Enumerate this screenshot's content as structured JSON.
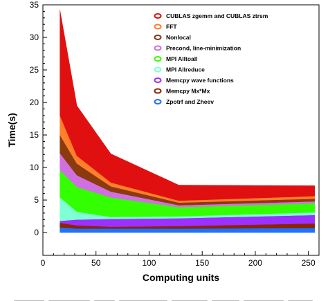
{
  "chart_data": {
    "type": "area",
    "stacked": true,
    "title": "",
    "xlabel": "Computing units",
    "ylabel": "Time(s)",
    "xlim": [
      0,
      260
    ],
    "ylim": [
      -3.5,
      35
    ],
    "xticks": [
      0,
      50,
      100,
      150,
      200,
      250
    ],
    "yticks": [
      0,
      5,
      10,
      15,
      20,
      25,
      30,
      35
    ],
    "grid": false,
    "legend_position": "top-right",
    "x": [
      16,
      32,
      64,
      128,
      256
    ],
    "series": [
      {
        "name": "Zpotrf and Zheev",
        "color": "#1e72ff",
        "values": [
          0.8,
          0.6,
          0.6,
          0.6,
          0.7
        ]
      },
      {
        "name": "Memcpy Mx*Mx",
        "color": "#8b2500",
        "values": [
          0.7,
          0.5,
          0.3,
          0.4,
          0.7
        ]
      },
      {
        "name": "Memcpy wave functions",
        "color": "#9b30ff",
        "values": [
          0.3,
          0.9,
          1.2,
          1.2,
          1.3
        ]
      },
      {
        "name": "MPI Allreduce",
        "color": "#7fffd4",
        "values": [
          3.6,
          1.2,
          0.3,
          0.3,
          0.4
        ]
      },
      {
        "name": "MPI Alltoall",
        "color": "#33ff00",
        "values": [
          4.2,
          3.8,
          3.0,
          1.4,
          1.4
        ]
      },
      {
        "name": "Precond, line-minimization",
        "color": "#d070e0",
        "values": [
          2.6,
          1.8,
          0.9,
          0.3,
          0.3
        ]
      },
      {
        "name": "Nonlocal",
        "color": "#8b3a0f",
        "values": [
          2.8,
          1.8,
          0.8,
          0.4,
          0.4
        ]
      },
      {
        "name": "FFT",
        "color": "#ff7f2a",
        "values": [
          3.0,
          1.2,
          0.6,
          0.3,
          0.4
        ]
      },
      {
        "name": "CUBLAS zgemm and CUBLAS ztrsm",
        "color": "#e01010",
        "values": [
          16.2,
          7.7,
          4.4,
          2.4,
          1.6
        ]
      }
    ],
    "legend_order": [
      "CUBLAS zgemm and CUBLAS ztrsm",
      "FFT",
      "Nonlocal",
      "Precond, line-minimization",
      "MPI Alltoall",
      "MPI Allreduce",
      "Memcpy wave functions",
      "Memcpy Mx*Mx",
      "Zpotrf and Zheev"
    ]
  }
}
